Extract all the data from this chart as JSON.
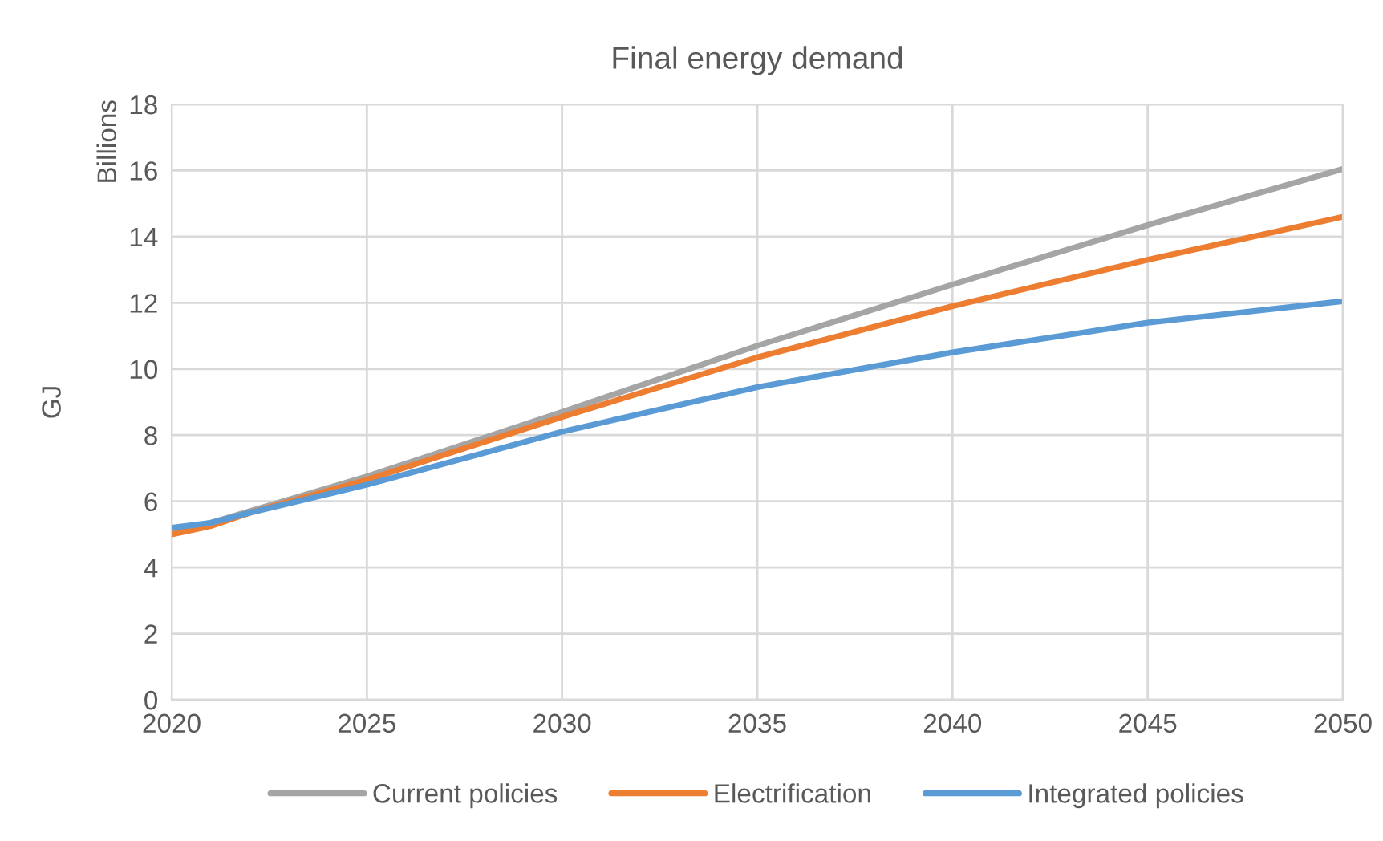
{
  "chart_data": {
    "type": "line",
    "title": "Final energy demand",
    "ylabel": "GJ",
    "annotations": [
      "Billions"
    ],
    "x": [
      2020,
      2021,
      2022,
      2025,
      2030,
      2035,
      2040,
      2045,
      2050
    ],
    "series": [
      {
        "name": "Current policies",
        "color": "#a5a5a5",
        "values": [
          5.1,
          5.35,
          5.7,
          6.75,
          8.7,
          10.7,
          12.55,
          14.35,
          16.05
        ]
      },
      {
        "name": "Electrification",
        "color": "#ed7d31",
        "values": [
          5.0,
          5.25,
          5.65,
          6.65,
          8.55,
          10.35,
          11.9,
          13.3,
          14.6
        ]
      },
      {
        "name": "Integrated policies",
        "color": "#5b9bd5",
        "values": [
          5.2,
          5.35,
          5.65,
          6.5,
          8.1,
          9.45,
          10.5,
          11.4,
          12.05
        ]
      }
    ],
    "xlim": [
      2020,
      2050
    ],
    "xticks": [
      2020,
      2025,
      2030,
      2035,
      2040,
      2045,
      2050
    ],
    "ylim": [
      0,
      18
    ],
    "yticks": [
      0,
      2,
      4,
      6,
      8,
      10,
      12,
      14,
      16,
      18
    ],
    "grid": true,
    "legend": "bottom",
    "marker": "none",
    "line_style": "solid"
  }
}
